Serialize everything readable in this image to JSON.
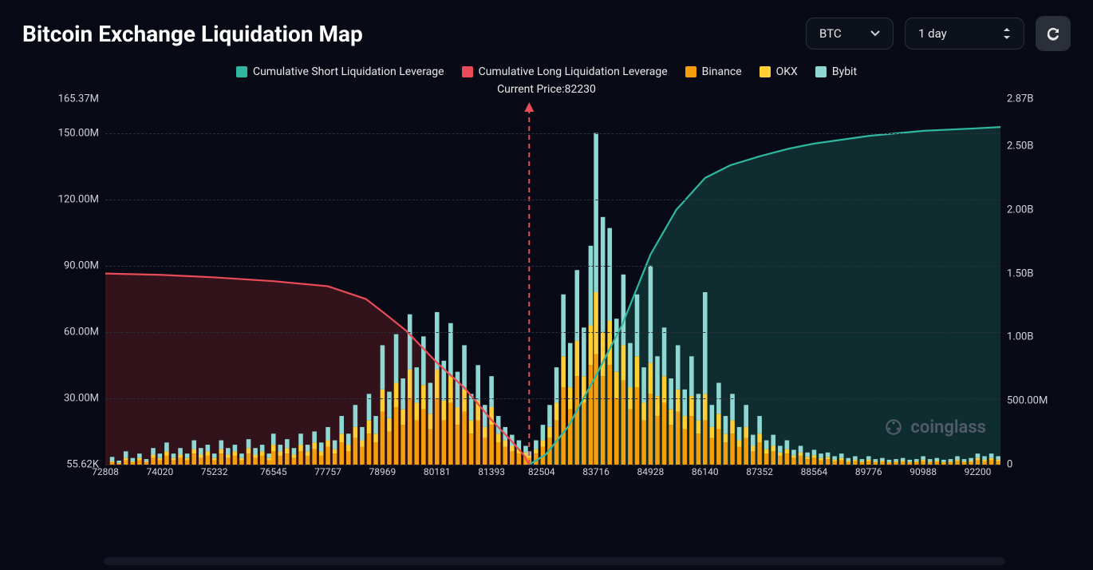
{
  "title": "Bitcoin Exchange Liquidation Map",
  "controls": {
    "coin": "BTC",
    "timeframe": "1 day"
  },
  "legend": [
    {
      "label": "Cumulative Short Liquidation Leverage",
      "color": "#2fb79f"
    },
    {
      "label": "Cumulative Long Liquidation Leverage",
      "color": "#e74c58"
    },
    {
      "label": "Binance",
      "color": "#f59e0b"
    },
    {
      "label": "OKX",
      "color": "#ffcf33"
    },
    {
      "label": "Bybit",
      "color": "#8fd7d3"
    }
  ],
  "current_price_label": "Current Price:82230",
  "watermark": "coinglass",
  "chart": {
    "type": "combo-stacked-bar-and-lines",
    "background": "#080b15",
    "grid_color": "#2a2f3a",
    "current_price_line_color": "#e74c58",
    "x": {
      "min": 72808,
      "max": 92706,
      "tick_step": 1212,
      "ticks": [
        72808,
        74020,
        75232,
        76545,
        77757,
        78969,
        80181,
        81393,
        82504,
        83716,
        84928,
        86140,
        87352,
        88564,
        89776,
        90988,
        92200
      ]
    },
    "y_left": {
      "max_label": "165.37M",
      "min_label": "55.62K",
      "max": 165370000,
      "min": 0,
      "ticks": [
        {
          "v": 165370000,
          "label": "165.37M"
        },
        {
          "v": 150000000,
          "label": "150.00M"
        },
        {
          "v": 120000000,
          "label": "120.00M"
        },
        {
          "v": 90000000,
          "label": "90.00M"
        },
        {
          "v": 60000000,
          "label": "60.00M"
        },
        {
          "v": 30000000,
          "label": "30.00M"
        },
        {
          "v": 55620,
          "label": "55.62K"
        }
      ]
    },
    "y_right": {
      "max": 2870000000,
      "min": 0,
      "ticks": [
        {
          "v": 2870000000,
          "label": "2.87B"
        },
        {
          "v": 2500000000,
          "label": "2.50B"
        },
        {
          "v": 2000000000,
          "label": "2.00B"
        },
        {
          "v": 1500000000,
          "label": "1.50B"
        },
        {
          "v": 1000000000,
          "label": "1.00B"
        },
        {
          "v": 500000000,
          "label": "500.00M"
        },
        {
          "v": 0,
          "label": "0"
        }
      ]
    },
    "current_price": 82230,
    "long_line_color": "#e74c58",
    "short_line_color": "#2fb79f",
    "long_fill": "rgba(130,35,40,0.35)",
    "short_fill": "rgba(30,110,95,0.35)",
    "line_width": 2.2,
    "long_leverage": [
      [
        72808,
        1500000000
      ],
      [
        74020,
        1490000000
      ],
      [
        75232,
        1470000000
      ],
      [
        76545,
        1440000000
      ],
      [
        77757,
        1400000000
      ],
      [
        78600,
        1300000000
      ],
      [
        78969,
        1200000000
      ],
      [
        79500,
        1050000000
      ],
      [
        80181,
        800000000
      ],
      [
        80800,
        600000000
      ],
      [
        81393,
        350000000
      ],
      [
        81800,
        200000000
      ],
      [
        82100,
        80000000
      ],
      [
        82230,
        0
      ]
    ],
    "short_leverage": [
      [
        82230,
        0
      ],
      [
        82600,
        80000000
      ],
      [
        83100,
        300000000
      ],
      [
        83716,
        700000000
      ],
      [
        84300,
        1100000000
      ],
      [
        84928,
        1650000000
      ],
      [
        85500,
        2000000000
      ],
      [
        86140,
        2250000000
      ],
      [
        86700,
        2350000000
      ],
      [
        87352,
        2420000000
      ],
      [
        88000,
        2480000000
      ],
      [
        88564,
        2520000000
      ],
      [
        89776,
        2580000000
      ],
      [
        90988,
        2620000000
      ],
      [
        92200,
        2640000000
      ],
      [
        92706,
        2650000000
      ]
    ],
    "bar_colors": {
      "binance": "#f59e0b",
      "okx": "#ffcf33",
      "bybit": "#8fd7d3"
    },
    "bar_width_ratio": 0.65,
    "bars": [
      [
        72808,
        0,
        0,
        0
      ],
      [
        72960,
        1,
        0.5,
        2
      ],
      [
        73112,
        0.5,
        0.3,
        1
      ],
      [
        73264,
        2,
        1,
        3
      ],
      [
        73416,
        1,
        0.5,
        1.5
      ],
      [
        73568,
        2,
        1,
        2
      ],
      [
        73720,
        1,
        0.5,
        1
      ],
      [
        73872,
        3,
        1.5,
        3
      ],
      [
        74020,
        2,
        1,
        2
      ],
      [
        74172,
        4,
        2,
        4
      ],
      [
        74324,
        2,
        1,
        2
      ],
      [
        74476,
        3,
        1.5,
        3
      ],
      [
        74628,
        2,
        1,
        2
      ],
      [
        74780,
        5,
        2,
        4
      ],
      [
        74932,
        3,
        1.5,
        3
      ],
      [
        75084,
        4,
        2,
        3
      ],
      [
        75232,
        2,
        1,
        2
      ],
      [
        75384,
        5,
        2,
        4
      ],
      [
        75536,
        3,
        1.5,
        3
      ],
      [
        75688,
        4,
        2,
        3
      ],
      [
        75840,
        2,
        1,
        2
      ],
      [
        75992,
        5,
        2.5,
        4
      ],
      [
        76144,
        3,
        1.5,
        3
      ],
      [
        76296,
        4,
        2,
        3
      ],
      [
        76448,
        2,
        1,
        2
      ],
      [
        76545,
        6,
        3,
        5
      ],
      [
        76697,
        4,
        2,
        3
      ],
      [
        76849,
        5,
        2.5,
        4
      ],
      [
        77001,
        3,
        1.5,
        3
      ],
      [
        77153,
        6,
        3,
        5
      ],
      [
        77305,
        4,
        2,
        3
      ],
      [
        77457,
        7,
        3,
        5
      ],
      [
        77609,
        4,
        2,
        4
      ],
      [
        77757,
        8,
        3,
        6
      ],
      [
        77909,
        5,
        2,
        4
      ],
      [
        78061,
        10,
        4,
        8
      ],
      [
        78213,
        6,
        3,
        5
      ],
      [
        78365,
        12,
        5,
        10
      ],
      [
        78517,
        8,
        3,
        6
      ],
      [
        78669,
        14,
        6,
        12
      ],
      [
        78821,
        10,
        4,
        8
      ],
      [
        78969,
        24,
        10,
        20
      ],
      [
        79121,
        15,
        6,
        12
      ],
      [
        79273,
        26,
        11,
        22
      ],
      [
        79425,
        18,
        7,
        14
      ],
      [
        79577,
        30,
        13,
        25
      ],
      [
        79729,
        20,
        8,
        16
      ],
      [
        79881,
        25,
        11,
        22
      ],
      [
        80033,
        16,
        7,
        14
      ],
      [
        80181,
        30,
        13,
        26
      ],
      [
        80333,
        20,
        9,
        18
      ],
      [
        80485,
        28,
        12,
        24
      ],
      [
        80637,
        18,
        8,
        16
      ],
      [
        80789,
        24,
        10,
        20
      ],
      [
        80941,
        14,
        6,
        12
      ],
      [
        81093,
        20,
        9,
        16
      ],
      [
        81245,
        12,
        5,
        10
      ],
      [
        81393,
        18,
        8,
        14
      ],
      [
        81545,
        10,
        4,
        8
      ],
      [
        81697,
        8,
        3,
        6
      ],
      [
        81849,
        6,
        2.5,
        5
      ],
      [
        82001,
        5,
        2,
        4
      ],
      [
        82153,
        4,
        1.5,
        3
      ],
      [
        82230,
        3,
        1,
        2
      ],
      [
        82382,
        5,
        2,
        4
      ],
      [
        82534,
        8,
        3,
        7
      ],
      [
        82686,
        12,
        5,
        10
      ],
      [
        82838,
        20,
        8,
        16
      ],
      [
        82990,
        35,
        14,
        28
      ],
      [
        83142,
        25,
        10,
        20
      ],
      [
        83294,
        40,
        16,
        32
      ],
      [
        83446,
        28,
        12,
        22
      ],
      [
        83598,
        45,
        18,
        36
      ],
      [
        83716,
        50,
        28,
        72
      ],
      [
        83868,
        40,
        20,
        52
      ],
      [
        84020,
        45,
        20,
        42
      ],
      [
        84172,
        30,
        12,
        24
      ],
      [
        84324,
        38,
        16,
        32
      ],
      [
        84476,
        25,
        10,
        20
      ],
      [
        84628,
        35,
        14,
        28
      ],
      [
        84780,
        20,
        8,
        16
      ],
      [
        84928,
        32,
        14,
        44
      ],
      [
        85080,
        22,
        9,
        18
      ],
      [
        85232,
        28,
        12,
        22
      ],
      [
        85384,
        18,
        7,
        14
      ],
      [
        85536,
        24,
        10,
        20
      ],
      [
        85688,
        16,
        6,
        12
      ],
      [
        85840,
        22,
        9,
        18
      ],
      [
        85992,
        14,
        6,
        12
      ],
      [
        86140,
        20,
        12,
        46
      ],
      [
        86292,
        12,
        5,
        10
      ],
      [
        86444,
        16,
        7,
        14
      ],
      [
        86596,
        10,
        4,
        8
      ],
      [
        86748,
        14,
        6,
        12
      ],
      [
        86900,
        8,
        3,
        6
      ],
      [
        87052,
        12,
        5,
        10
      ],
      [
        87204,
        6,
        2.5,
        5
      ],
      [
        87352,
        10,
        4,
        8
      ],
      [
        87504,
        5,
        2,
        4
      ],
      [
        87656,
        6,
        2.5,
        5
      ],
      [
        87808,
        4,
        1.5,
        3
      ],
      [
        87960,
        5,
        2,
        4
      ],
      [
        88112,
        3,
        1.2,
        2.5
      ],
      [
        88264,
        4,
        1.5,
        3
      ],
      [
        88416,
        2.5,
        1,
        2
      ],
      [
        88564,
        3,
        1.2,
        2.5
      ],
      [
        88716,
        2,
        1,
        2
      ],
      [
        88868,
        2.5,
        1,
        2
      ],
      [
        89020,
        1.5,
        0.8,
        1.5
      ],
      [
        89172,
        2,
        1,
        2
      ],
      [
        89324,
        1.2,
        0.6,
        1.2
      ],
      [
        89476,
        1.5,
        0.8,
        1.5
      ],
      [
        89628,
        1,
        0.5,
        1
      ],
      [
        89776,
        1.5,
        0.8,
        1.5
      ],
      [
        89928,
        1,
        0.5,
        1
      ],
      [
        90080,
        1.2,
        0.6,
        1.2
      ],
      [
        90232,
        0.8,
        0.4,
        1
      ],
      [
        90384,
        1,
        0.5,
        1
      ],
      [
        90536,
        1.2,
        0.6,
        1.2
      ],
      [
        90688,
        0.8,
        0.4,
        1
      ],
      [
        90840,
        1,
        0.5,
        1
      ],
      [
        90988,
        1.5,
        0.8,
        1.5
      ],
      [
        91140,
        1,
        0.5,
        1
      ],
      [
        91292,
        1.2,
        0.6,
        1.2
      ],
      [
        91444,
        0.8,
        0.4,
        1
      ],
      [
        91596,
        1,
        0.5,
        1
      ],
      [
        91748,
        1.5,
        0.8,
        1.5
      ],
      [
        91900,
        1,
        0.5,
        1
      ],
      [
        92052,
        1.2,
        0.6,
        1.2
      ],
      [
        92200,
        2,
        1,
        2
      ],
      [
        92352,
        1.5,
        0.8,
        1.5
      ],
      [
        92504,
        2,
        1,
        2
      ],
      [
        92656,
        1.5,
        0.8,
        1.5
      ]
    ]
  }
}
